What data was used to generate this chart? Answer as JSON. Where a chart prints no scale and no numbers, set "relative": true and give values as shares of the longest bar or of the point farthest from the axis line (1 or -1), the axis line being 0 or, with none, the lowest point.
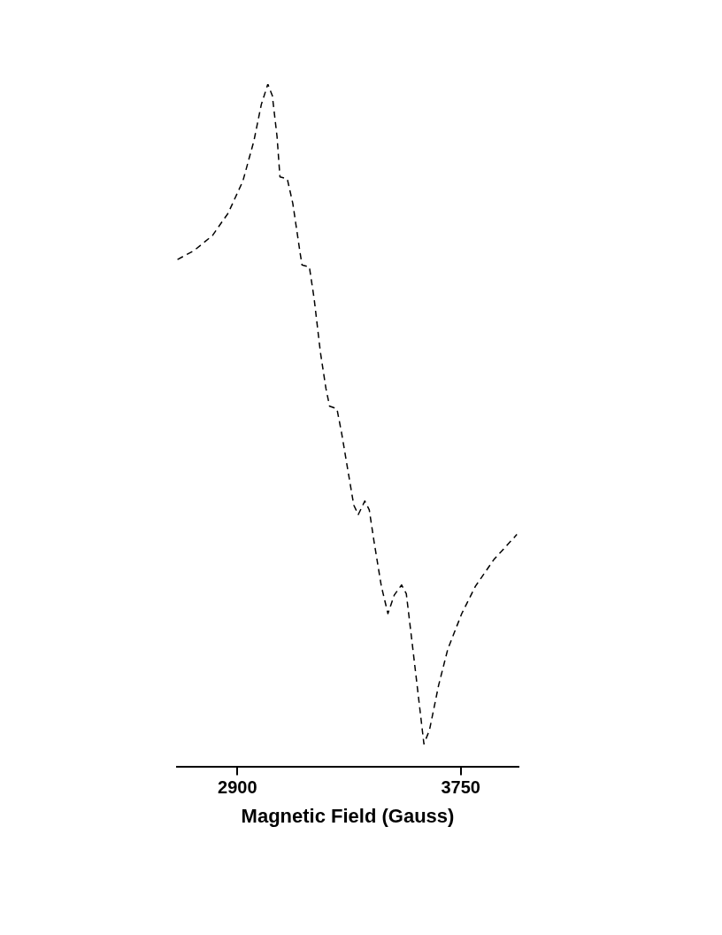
{
  "chart_data": {
    "type": "line",
    "xlabel": "Magnetic Field (Gauss)",
    "relative": true,
    "xlim": [
      2670,
      3970
    ],
    "xticks": [
      2900,
      3750
    ],
    "grid": false,
    "legend": false,
    "marker": "none",
    "line_style": "dashed",
    "x": [
      2672,
      2735,
      2805,
      2865,
      2921,
      2963,
      2991,
      3016,
      3033,
      3051,
      3062,
      3090,
      3111,
      3139,
      3146,
      3174,
      3192,
      3216,
      3237,
      3251,
      3279,
      3297,
      3314,
      3343,
      3360,
      3385,
      3402,
      3420,
      3448,
      3473,
      3497,
      3525,
      3543,
      3560,
      3588,
      3610,
      3631,
      3666,
      3701,
      3754,
      3806,
      3876,
      3964
    ],
    "series": [
      {
        "color": "#000000",
        "values": [
          0.743,
          0.756,
          0.778,
          0.811,
          0.858,
          0.917,
          0.97,
          1.0,
          0.983,
          0.923,
          0.864,
          0.861,
          0.825,
          0.752,
          0.735,
          0.732,
          0.686,
          0.607,
          0.554,
          0.528,
          0.524,
          0.488,
          0.449,
          0.383,
          0.369,
          0.389,
          0.376,
          0.33,
          0.264,
          0.224,
          0.251,
          0.266,
          0.253,
          0.198,
          0.106,
          0.033,
          0.053,
          0.119,
          0.172,
          0.224,
          0.264,
          0.303,
          0.34
        ]
      }
    ]
  }
}
